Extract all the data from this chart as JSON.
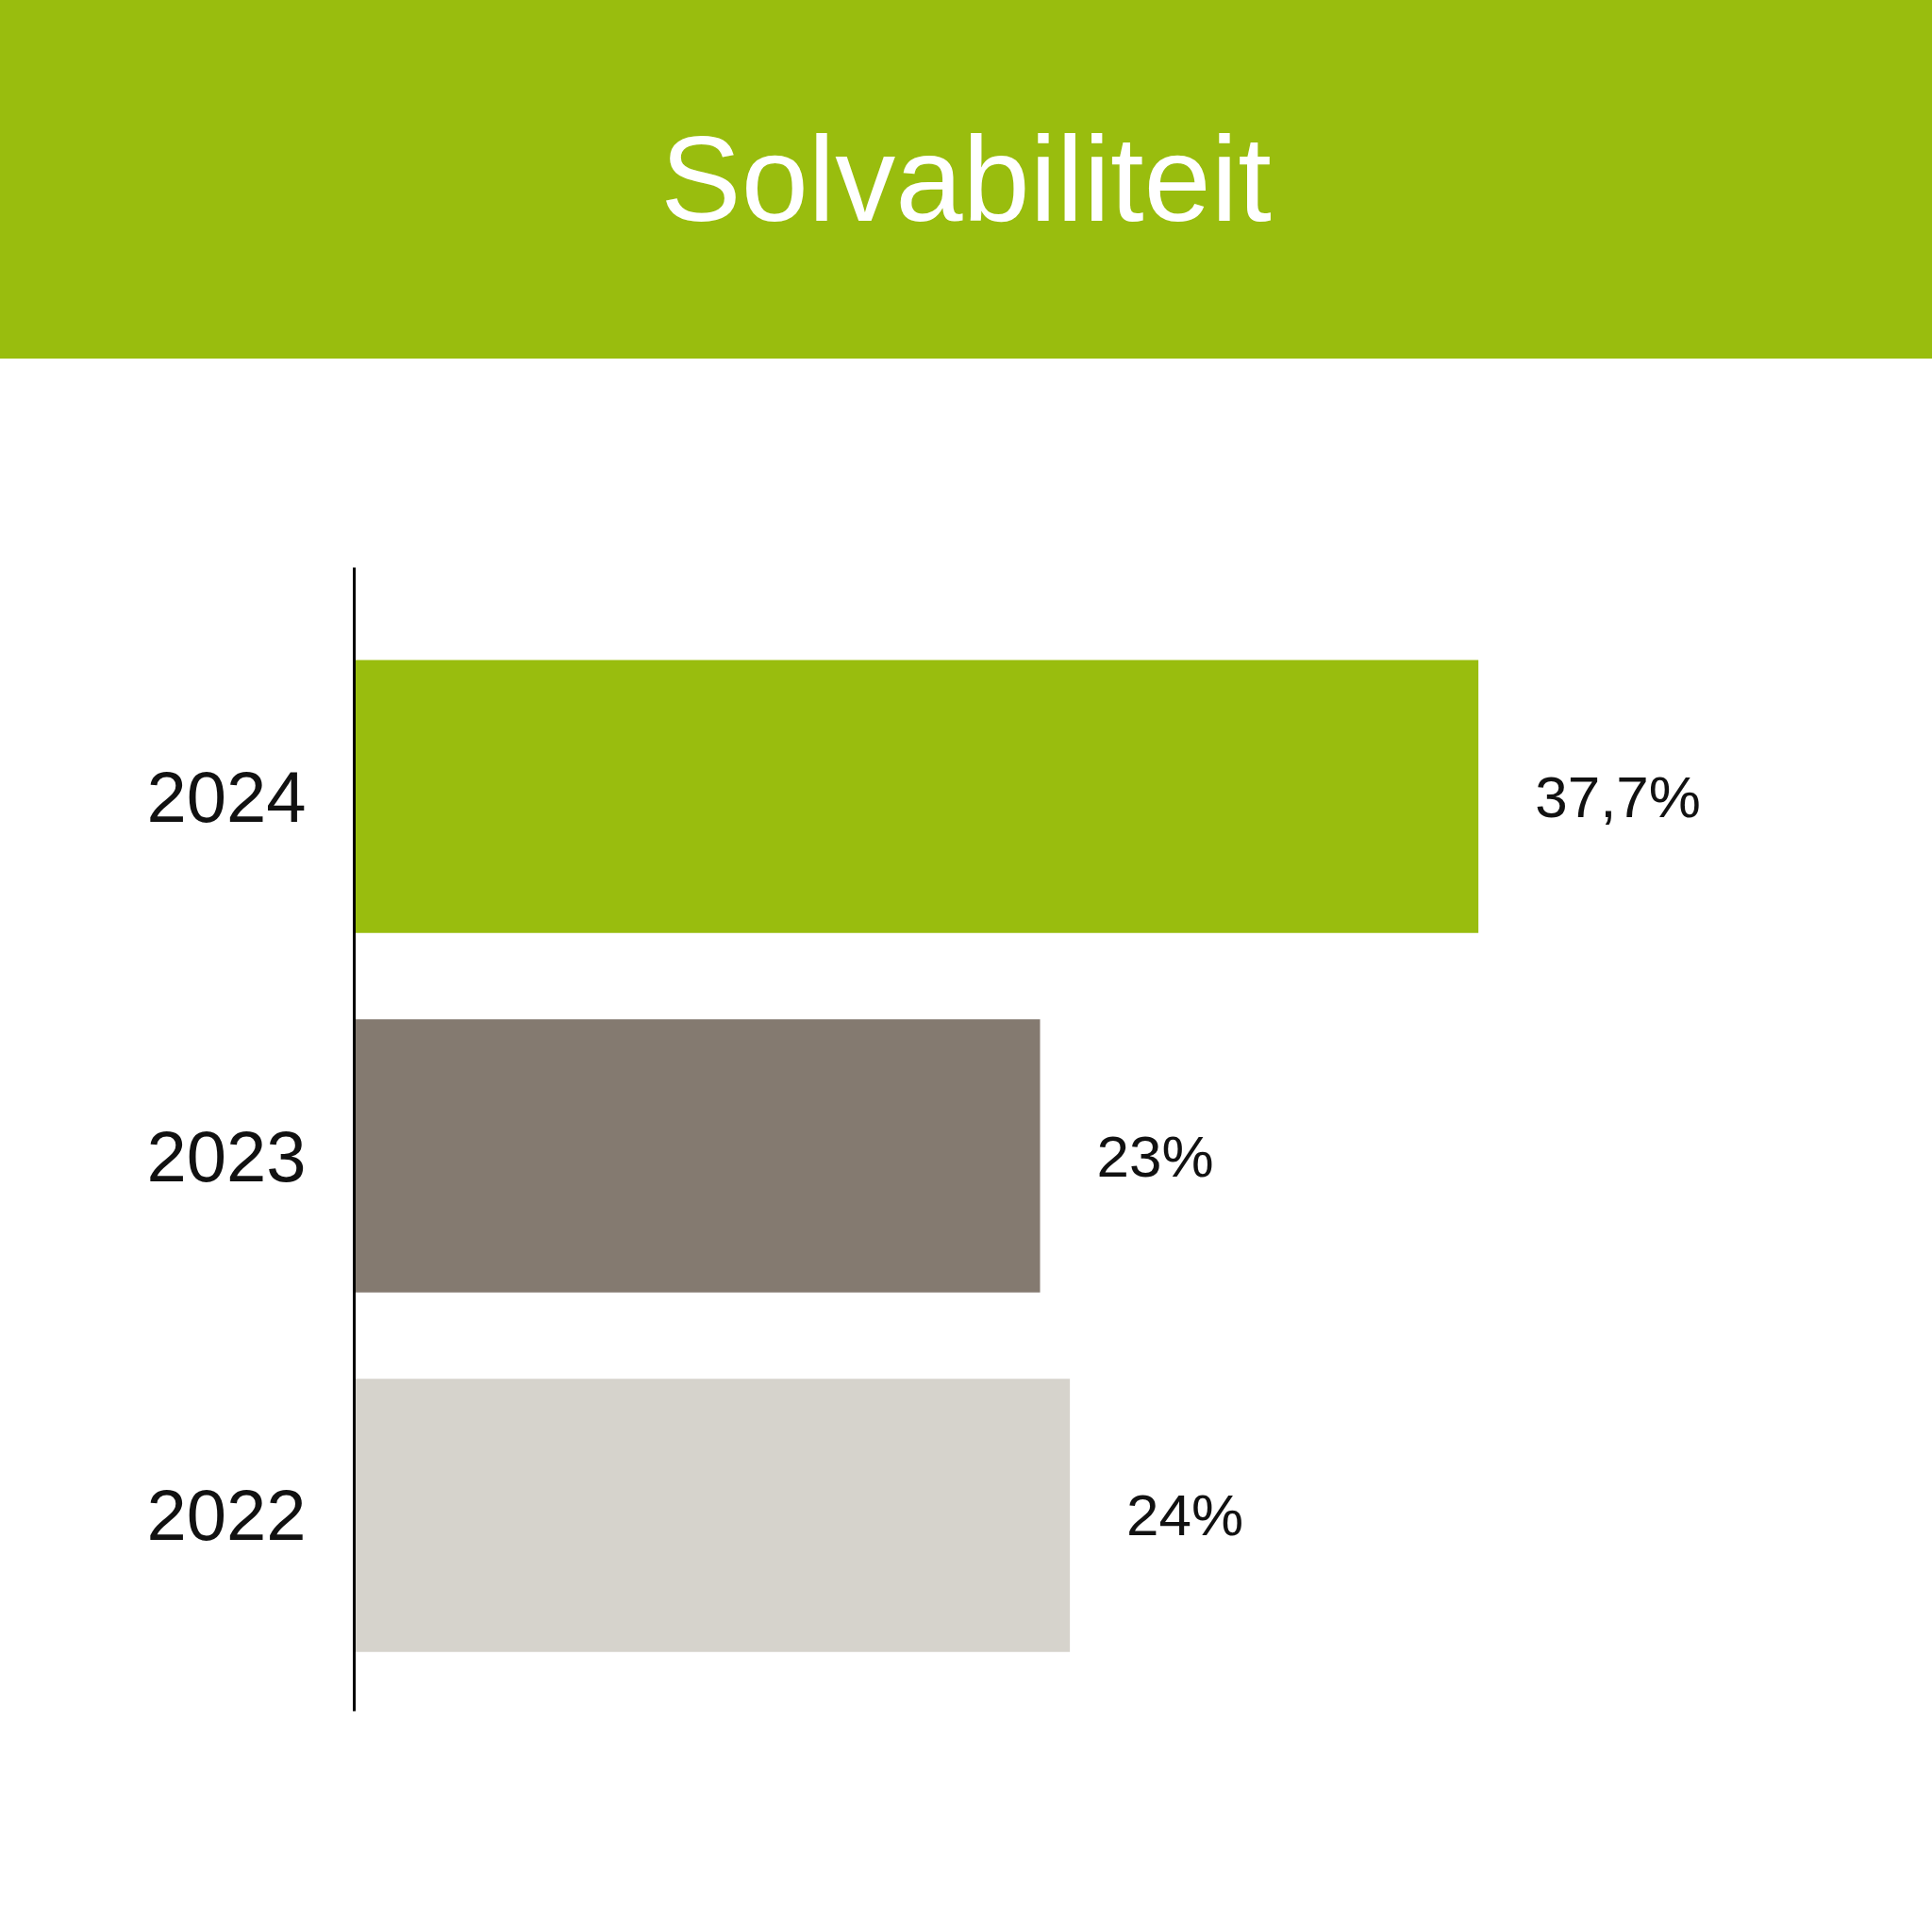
{
  "chart_data": {
    "type": "bar",
    "orientation": "horizontal",
    "title": "Solvabiliteit",
    "categories": [
      "2024",
      "2023",
      "2022"
    ],
    "values": [
      37.7,
      23,
      24
    ],
    "colors": [
      "#99bd0e",
      "#847a70",
      "#d6d3cc"
    ],
    "value_labels": [
      "37,7%",
      "23%",
      "24%"
    ],
    "grid": false
  }
}
